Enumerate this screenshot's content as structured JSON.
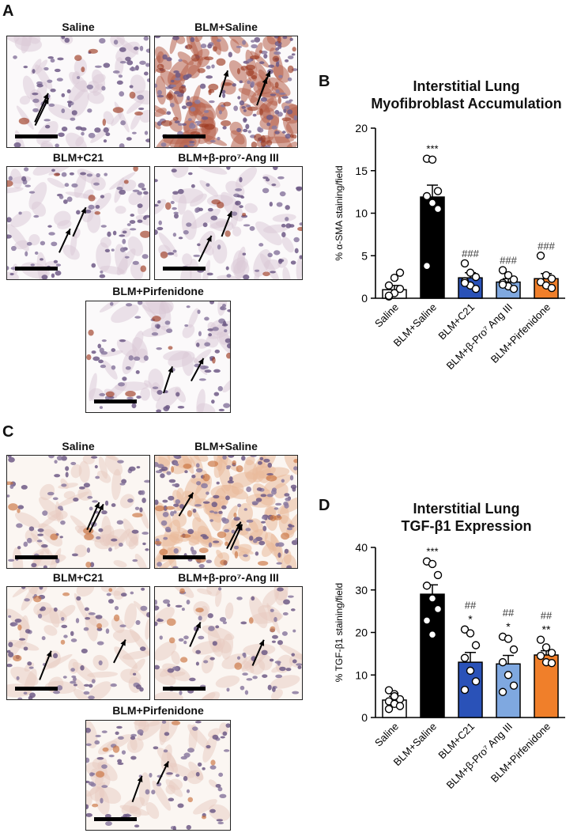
{
  "panels": {
    "a": "A",
    "b": "B",
    "c": "C",
    "d": "D"
  },
  "micrographs_top": [
    {
      "title": "Saline",
      "stain": "sma"
    },
    {
      "title": "BLM+Saline",
      "stain": "sma"
    },
    {
      "title": "BLM+C21",
      "stain": "sma"
    },
    {
      "title": "BLM+β-pro⁷-Ang III",
      "stain": "sma"
    },
    {
      "title": "BLM+Pirfenidone",
      "stain": "sma"
    }
  ],
  "micrographs_bottom": [
    {
      "title": "Saline",
      "stain": "tgf"
    },
    {
      "title": "BLM+Saline",
      "stain": "tgf"
    },
    {
      "title": "BLM+C21",
      "stain": "tgf"
    },
    {
      "title": "BLM+β-pro⁷-Ang III",
      "stain": "tgf"
    },
    {
      "title": "BLM+Pirfenidone",
      "stain": "tgf"
    }
  ],
  "chart_data": [
    {
      "type": "bar",
      "title_line1": "Interstitial Lung",
      "title_line2": "Myofibroblast Accumulation",
      "ylabel": "% α-SMA staining/field",
      "ylim": [
        0,
        20
      ],
      "yticks": [
        0,
        5,
        10,
        15,
        20
      ],
      "categories": [
        "Saline",
        "BLM+Saline",
        "BLM+C21",
        "BLM+β-Pro⁷ Ang III",
        "BLM+Pirfenidone"
      ],
      "values": [
        1.0,
        11.9,
        2.4,
        1.9,
        2.3
      ],
      "errors": [
        0.5,
        1.4,
        0.6,
        0.4,
        0.6
      ],
      "colors": [
        "#ffffff",
        "#000000",
        "#2a52b8",
        "#7fa8e0",
        "#f07f2a"
      ],
      "annotations": [
        [
          "",
          ""
        ],
        [
          "***",
          ""
        ],
        [
          "###",
          ""
        ],
        [
          "###",
          ""
        ],
        [
          "###",
          ""
        ]
      ],
      "points": [
        [
          0.2,
          0.6,
          1.1,
          1.5,
          2.4,
          3.0,
          0.3
        ],
        [
          16.4,
          16.3,
          12.6,
          12.0,
          11.2,
          10.5,
          3.8
        ],
        [
          4.1,
          3.0,
          2.5,
          2.0,
          1.5,
          1.1,
          1.8
        ],
        [
          3.3,
          2.7,
          2.2,
          1.8,
          1.4,
          1.1,
          1.6
        ],
        [
          5.0,
          2.7,
          2.3,
          1.9,
          1.5,
          1.2
        ]
      ]
    },
    {
      "type": "bar",
      "title_line1": "Interstitial Lung",
      "title_line2": "TGF-β1 Expression",
      "ylabel": "% TGF-β1 staining/field",
      "ylim": [
        0,
        40
      ],
      "yticks": [
        0,
        10,
        20,
        30,
        40
      ],
      "categories": [
        "Saline",
        "BLM+Saline",
        "BLM+C21",
        "BLM+β-Pro⁷ Ang III",
        "BLM+Pirfenidone"
      ],
      "values": [
        4.1,
        29.0,
        13.0,
        12.6,
        14.7
      ],
      "errors": [
        0.9,
        2.2,
        2.3,
        2.0,
        1.0
      ],
      "colors": [
        "#ffffff",
        "#000000",
        "#2a52b8",
        "#7fa8e0",
        "#f07f2a"
      ],
      "annotations": [
        [
          "",
          ""
        ],
        [
          "***",
          ""
        ],
        [
          "##",
          "*"
        ],
        [
          "##",
          "*"
        ],
        [
          "##",
          "**"
        ]
      ],
      "points": [
        [
          6.4,
          5.5,
          4.3,
          3.8,
          3.2,
          2.7,
          2.0,
          5.0
        ],
        [
          36.7,
          36.1,
          33.5,
          31.0,
          28.0,
          25.5,
          22.8,
          19.5
        ],
        [
          20.7,
          19.8,
          17.0,
          14.0,
          11.0,
          8.5,
          6.5
        ],
        [
          19.0,
          18.5,
          16.0,
          13.0,
          10.0,
          7.5,
          6.0
        ],
        [
          18.3,
          16.5,
          15.2,
          14.5,
          13.0,
          12.8
        ]
      ]
    }
  ]
}
